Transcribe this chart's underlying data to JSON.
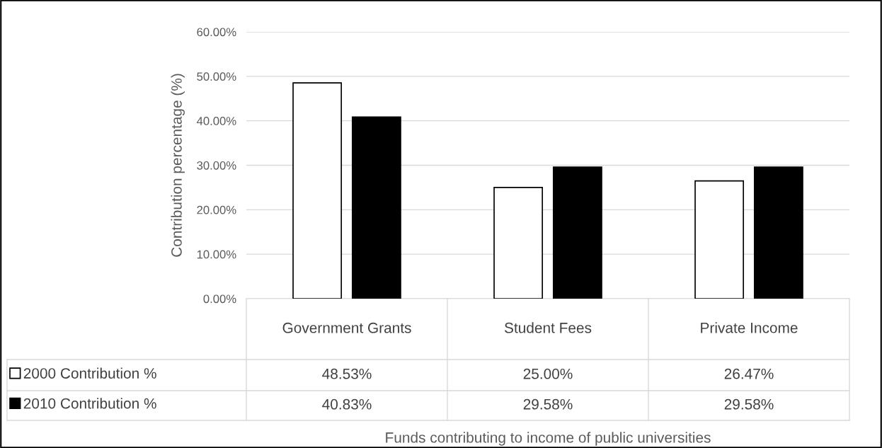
{
  "chart_data": {
    "type": "bar",
    "categories": [
      "Government Grants",
      "Student Fees",
      "Private Income"
    ],
    "series": [
      {
        "name": "2000 Contribution %",
        "color": "#ffffff",
        "values": [
          48.53,
          25.0,
          26.47
        ],
        "value_labels": [
          "48.53%",
          "25.00%",
          "26.47%"
        ]
      },
      {
        "name": "2010 Contribution %",
        "color": "#000000",
        "values": [
          40.83,
          29.58,
          29.58
        ],
        "value_labels": [
          "40.83%",
          "29.58%",
          "29.58%"
        ]
      }
    ],
    "annotations": [
      "Funds contributing to income of public universities"
    ],
    "ylabel": "Contribution percentage (%)",
    "ylim": [
      0,
      60
    ],
    "yticks": [
      {
        "value": 0,
        "label": "0.00%"
      },
      {
        "value": 10,
        "label": "10.00%"
      },
      {
        "value": 20,
        "label": "20.00%"
      },
      {
        "value": 30,
        "label": "30.00%"
      },
      {
        "value": 40,
        "label": "40.00%"
      },
      {
        "value": 50,
        "label": "50.00%"
      },
      {
        "value": 60,
        "label": "60.00%"
      }
    ],
    "grid": "y",
    "legend": "bottom"
  }
}
